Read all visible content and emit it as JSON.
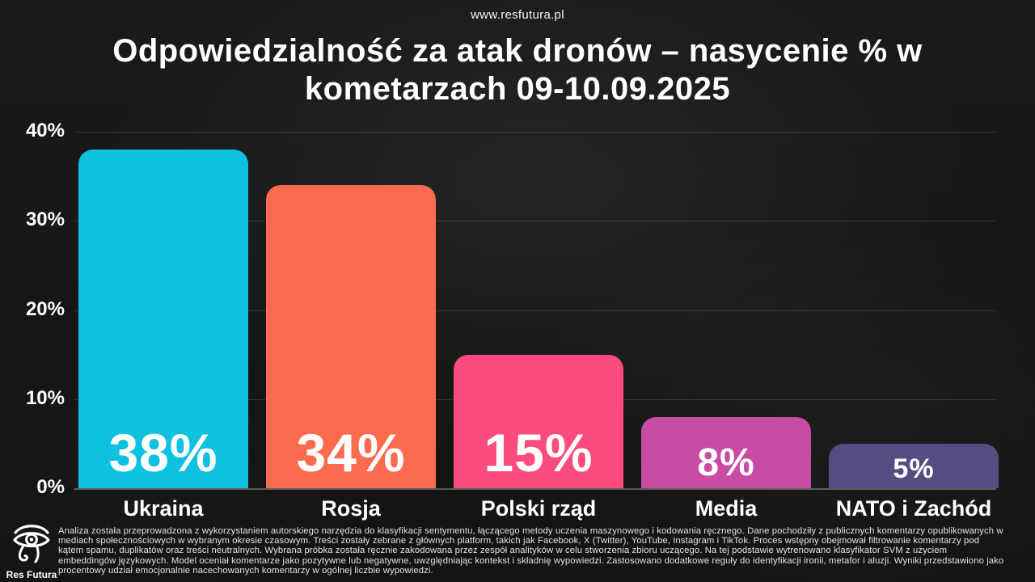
{
  "header": {
    "website": "www.resfutura.pl",
    "title_line1": "Odpowiedzialność za atak dronów – nasycenie % w",
    "title_line2": "kometarzach 09-10.09.2025"
  },
  "chart_data": {
    "type": "bar",
    "title": "Odpowiedzialność za atak dronów – nasycenie % w kometarzach 09-10.09.2025",
    "categories": [
      "Ukraina",
      "Rosja",
      "Polski rząd",
      "Media",
      "NATO i Zachód"
    ],
    "values": [
      38,
      34,
      15,
      8,
      5
    ],
    "value_labels": [
      "38%",
      "34%",
      "15%",
      "8%",
      "5%"
    ],
    "bar_colors": [
      "#0ec1e0",
      "#fc6b4d",
      "#fc4b7d",
      "#c94ca4",
      "#564c82"
    ],
    "xlabel": "",
    "ylabel": "",
    "ylim": [
      0,
      40
    ],
    "yticks": [
      "40%",
      "30%",
      "20%",
      "10%",
      "0%"
    ],
    "grid": true,
    "legend": false
  },
  "footer": {
    "logo_text": "Res Futura",
    "methodology": "Analiza została przeprowadzona z wykorzystaniem autorskiego narzędzia do klasyfikacji sentymentu, łączącego metody uczenia maszynowego i kodowania ręcznego. Dane pochodziły z publicznych komentarzy opublikowanych w mediach społecznościowych w wybranym okresie czasowym. Treści zostały zebrane z głównych platform, takich jak Facebook, X (Twitter), YouTube, Instagram i TikTok. Proces wstępny obejmował filtrowanie komentarzy pod kątem spamu, duplikatów oraz treści neutralnych. Wybrana próbka została ręcznie zakodowana przez zespół analityków w celu stworzenia zbioru uczącego. Na tej podstawie wytrenowano klasyfikator SVM z użyciem embeddingów językowych. Model oceniał komentarze jako pozytywne lub negatywne, uwzględniając kontekst i składnię wypowiedzi. Zastosowano dodatkowe reguły do identyfikacji ironii, metafor i aluzji. Wyniki przedstawiono jako procentowy udział emocjonalnie nacechowanych komentarzy w ogólnej liczbie wypowiedzi."
  },
  "colors": {
    "background": "#171717",
    "text": "#ffffff",
    "gridline": "#3a3a3a"
  }
}
